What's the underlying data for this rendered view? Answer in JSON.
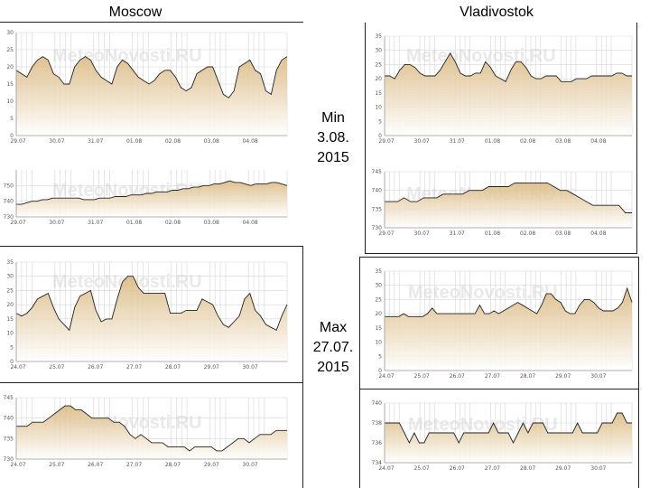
{
  "headers": {
    "left": "Moscow",
    "right": "Vladivostok"
  },
  "min_label": {
    "line1": "Min",
    "line2": "3.08.",
    "line3": "2015"
  },
  "max_label": {
    "line1": "Max",
    "line2": "27.07.",
    "line3": "2015"
  },
  "watermark": "MeteoNovosti.RU",
  "colors": {
    "line": "#222222",
    "fill_top": "#d9b77d",
    "fill_bottom": "#ffffff",
    "grid": "#d6d6d6",
    "axis": "#999999",
    "frame": "#555555"
  },
  "chart_data": [
    {
      "id": "moscow-min-temp",
      "type": "area",
      "city": "Moscow",
      "variable": "temperature",
      "ylim": [
        0,
        30
      ],
      "yticks": [
        "0",
        "5",
        "10",
        "15",
        "20",
        "25",
        "30"
      ],
      "xticks": [
        "29.07",
        "30.07",
        "31.07",
        "01.08",
        "02.08",
        "03.08",
        "04.08"
      ],
      "values": [
        19,
        18,
        17,
        20,
        22,
        23,
        22,
        18,
        17,
        15,
        15,
        20,
        22,
        23,
        22,
        19,
        17,
        16,
        15,
        20,
        22,
        21,
        19,
        17,
        16,
        15,
        16,
        18,
        19,
        19,
        17,
        14,
        13,
        14,
        18,
        19,
        20,
        20,
        16,
        12,
        11,
        13,
        20,
        21,
        22,
        19,
        18,
        13,
        12,
        19,
        22,
        23
      ]
    },
    {
      "id": "moscow-min-pressure",
      "type": "area",
      "city": "Moscow",
      "variable": "pressure",
      "ylim": [
        730,
        760
      ],
      "yticks": [
        "730",
        "740",
        "750"
      ],
      "xticks": [
        "29.07",
        "30.07",
        "31.07",
        "01.08",
        "02.08",
        "03.08",
        "04.08"
      ],
      "values": [
        738,
        738,
        739,
        740,
        740,
        741,
        741,
        742,
        742,
        742,
        742,
        742,
        742,
        741,
        741,
        741,
        742,
        742,
        742,
        743,
        743,
        743,
        744,
        744,
        744,
        745,
        745,
        746,
        746,
        746,
        747,
        747,
        748,
        748,
        749,
        749,
        750,
        750,
        751,
        751,
        752,
        753,
        752,
        752,
        751,
        750,
        751,
        751,
        751,
        752,
        752,
        751,
        750
      ]
    },
    {
      "id": "vladivostok-min-temp",
      "type": "area",
      "city": "Vladivostok",
      "variable": "temperature",
      "ylim": [
        0,
        35
      ],
      "yticks": [
        "0",
        "5",
        "10",
        "15",
        "20",
        "25",
        "30",
        "35"
      ],
      "xticks": [
        "29.07",
        "30.07",
        "31.07",
        "01.08",
        "02.08",
        "03.08",
        "04.08"
      ],
      "values": [
        21,
        21,
        20,
        23,
        25,
        25,
        24,
        22,
        21,
        21,
        21,
        23,
        26,
        29,
        26,
        22,
        21,
        21,
        22,
        22,
        26,
        24,
        21,
        20,
        19,
        23,
        26,
        26,
        24,
        21,
        20,
        20,
        21,
        21,
        21,
        19,
        19,
        19,
        20,
        20,
        20,
        21,
        21,
        21,
        21,
        21,
        22,
        22,
        21,
        21
      ]
    },
    {
      "id": "vladivostok-min-pressure",
      "type": "area",
      "city": "Vladivostok",
      "variable": "pressure",
      "ylim": [
        730,
        745
      ],
      "yticks": [
        "730",
        "735",
        "740",
        "745"
      ],
      "xticks": [
        "29.07",
        "30.07",
        "31.07",
        "01.08",
        "02.08",
        "03.08",
        "04.08"
      ],
      "values": [
        737,
        737,
        737,
        738,
        737,
        737,
        738,
        738,
        738,
        739,
        739,
        739,
        739,
        740,
        740,
        740,
        741,
        741,
        741,
        741,
        742,
        742,
        742,
        742,
        742,
        742,
        741,
        740,
        740,
        739,
        738,
        737,
        736,
        736,
        736,
        736,
        736,
        734,
        734
      ]
    },
    {
      "id": "moscow-max-temp",
      "type": "area",
      "city": "Moscow",
      "variable": "temperature",
      "ylim": [
        0,
        35
      ],
      "yticks": [
        "0",
        "5",
        "10",
        "15",
        "20",
        "25",
        "30",
        "35"
      ],
      "xticks": [
        "24.07",
        "25.07",
        "26.07",
        "27.07",
        "28.07",
        "29.07",
        "30.07"
      ],
      "values": [
        17,
        16,
        17,
        19,
        22,
        23,
        24,
        19,
        15,
        13,
        11,
        19,
        23,
        24,
        25,
        18,
        14,
        15,
        15,
        22,
        28,
        30,
        30,
        26,
        24,
        24,
        24,
        24,
        24,
        17,
        17,
        17,
        18,
        18,
        18,
        22,
        21,
        20,
        16,
        13,
        12,
        14,
        16,
        22,
        24,
        18,
        16,
        13,
        12,
        11,
        16,
        20
      ]
    },
    {
      "id": "moscow-max-pressure",
      "type": "area",
      "city": "Moscow",
      "variable": "pressure",
      "ylim": [
        730,
        745
      ],
      "yticks": [
        "730",
        "735",
        "740",
        "745"
      ],
      "xticks": [
        "24.07",
        "25.07",
        "26.07",
        "27.07",
        "28.07",
        "29.07",
        "30.07"
      ],
      "values": [
        738,
        738,
        738,
        739,
        739,
        739,
        740,
        741,
        742,
        743,
        743,
        742,
        742,
        741,
        740,
        740,
        740,
        740,
        739,
        739,
        738,
        736,
        735,
        736,
        735,
        734,
        734,
        734,
        733,
        733,
        733,
        733,
        732,
        733,
        733,
        733,
        733,
        732,
        732,
        733,
        734,
        735,
        735,
        734,
        735,
        736,
        736,
        736,
        737,
        737,
        737
      ]
    },
    {
      "id": "vladivostok-max-temp",
      "type": "area",
      "city": "Vladivostok",
      "variable": "temperature",
      "ylim": [
        0,
        35
      ],
      "yticks": [
        "0",
        "5",
        "10",
        "15",
        "20",
        "25",
        "30",
        "35"
      ],
      "xticks": [
        "24.07",
        "25.07",
        "26.07",
        "27.07",
        "28.07",
        "29.07",
        "30.07"
      ],
      "values": [
        19,
        19,
        19,
        19,
        20,
        19,
        19,
        19,
        19,
        20,
        22,
        20,
        20,
        20,
        20,
        20,
        20,
        20,
        20,
        20,
        23,
        20,
        20,
        21,
        20,
        21,
        22,
        23,
        24,
        23,
        22,
        21,
        20,
        23,
        27,
        27,
        25,
        24,
        21,
        20,
        20,
        23,
        25,
        25,
        24,
        22,
        21,
        21,
        21,
        22,
        24,
        29,
        24
      ]
    },
    {
      "id": "vladivostok-max-pressure",
      "type": "area",
      "city": "Vladivostok",
      "variable": "pressure",
      "ylim": [
        734,
        740
      ],
      "yticks": [
        "734",
        "736",
        "738",
        "740"
      ],
      "xticks": [
        "24.07",
        "25.07",
        "26.07",
        "27.07",
        "28.07",
        "29.07",
        "30.07"
      ],
      "values": [
        738,
        738,
        738,
        738,
        737,
        736,
        737,
        736,
        736,
        737,
        737,
        737,
        737,
        737,
        737,
        736,
        737,
        737,
        737,
        737,
        737,
        737,
        738,
        737,
        737,
        737,
        736,
        737,
        738,
        737,
        738,
        738,
        738,
        737,
        737,
        737,
        737,
        737,
        737,
        738,
        737,
        737,
        737,
        737,
        738,
        738,
        738,
        739,
        739,
        738,
        738
      ]
    }
  ]
}
